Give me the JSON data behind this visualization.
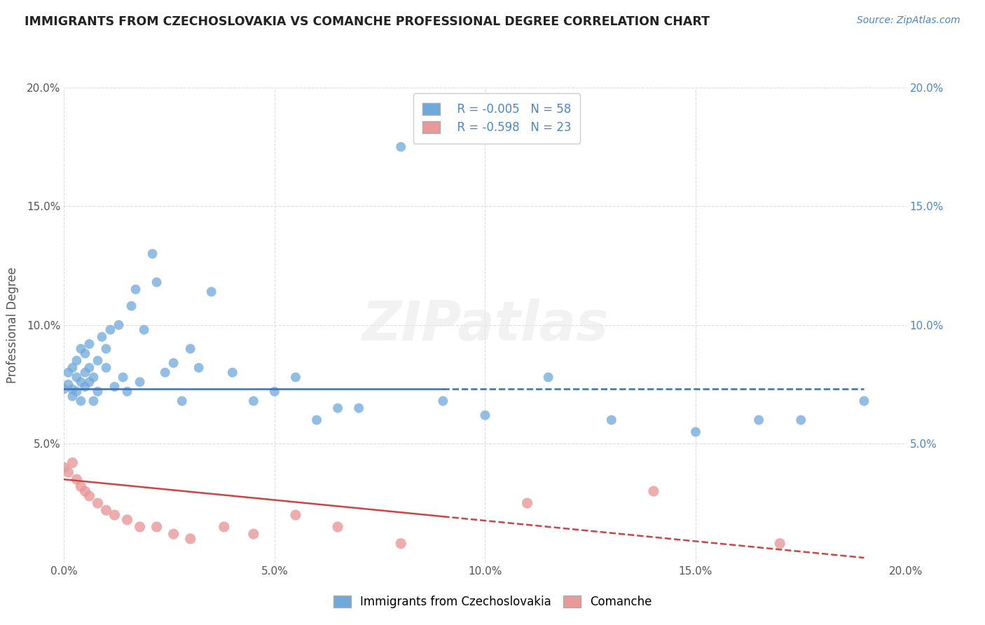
{
  "title": "IMMIGRANTS FROM CZECHOSLOVAKIA VS COMANCHE PROFESSIONAL DEGREE CORRELATION CHART",
  "source_text": "Source: ZipAtlas.com",
  "ylabel": "Professional Degree",
  "watermark": "ZIPatlas",
  "xlim": [
    0.0,
    0.2
  ],
  "ylim": [
    0.0,
    0.2
  ],
  "xtick_labels": [
    "0.0%",
    "5.0%",
    "10.0%",
    "15.0%",
    "20.0%"
  ],
  "xtick_vals": [
    0.0,
    0.05,
    0.1,
    0.15,
    0.2
  ],
  "ytick_labels": [
    "",
    "5.0%",
    "10.0%",
    "15.0%",
    "20.0%"
  ],
  "ytick_vals": [
    0.0,
    0.05,
    0.1,
    0.15,
    0.2
  ],
  "right_ytick_labels": [
    "5.0%",
    "10.0%",
    "15.0%",
    "20.0%"
  ],
  "right_ytick_vals": [
    0.05,
    0.1,
    0.15,
    0.2
  ],
  "legend_r1": "R = -0.005",
  "legend_n1": "N = 58",
  "legend_r2": "R = -0.598",
  "legend_n2": "N = 23",
  "blue_color": "#6fa8dc",
  "pink_color": "#ea9999",
  "blue_dark": "#3d6eb5",
  "pink_dark": "#cc4444",
  "blue_scatter_x": [
    0.0,
    0.001,
    0.001,
    0.002,
    0.002,
    0.002,
    0.003,
    0.003,
    0.003,
    0.004,
    0.004,
    0.004,
    0.005,
    0.005,
    0.005,
    0.006,
    0.006,
    0.006,
    0.007,
    0.007,
    0.008,
    0.008,
    0.009,
    0.01,
    0.01,
    0.011,
    0.012,
    0.013,
    0.014,
    0.015,
    0.016,
    0.017,
    0.018,
    0.019,
    0.021,
    0.022,
    0.024,
    0.026,
    0.028,
    0.03,
    0.032,
    0.035,
    0.04,
    0.045,
    0.05,
    0.055,
    0.06,
    0.065,
    0.07,
    0.08,
    0.09,
    0.1,
    0.115,
    0.13,
    0.15,
    0.165,
    0.175,
    0.19
  ],
  "blue_scatter_y": [
    0.073,
    0.075,
    0.08,
    0.073,
    0.082,
    0.07,
    0.078,
    0.085,
    0.072,
    0.09,
    0.068,
    0.076,
    0.08,
    0.074,
    0.088,
    0.082,
    0.076,
    0.092,
    0.078,
    0.068,
    0.085,
    0.072,
    0.095,
    0.09,
    0.082,
    0.098,
    0.074,
    0.1,
    0.078,
    0.072,
    0.108,
    0.115,
    0.076,
    0.098,
    0.13,
    0.118,
    0.08,
    0.084,
    0.068,
    0.09,
    0.082,
    0.114,
    0.08,
    0.068,
    0.072,
    0.078,
    0.06,
    0.065,
    0.065,
    0.175,
    0.068,
    0.062,
    0.078,
    0.06,
    0.055,
    0.06,
    0.06,
    0.068
  ],
  "pink_scatter_x": [
    0.0,
    0.001,
    0.002,
    0.003,
    0.004,
    0.005,
    0.006,
    0.008,
    0.01,
    0.012,
    0.015,
    0.018,
    0.022,
    0.026,
    0.03,
    0.038,
    0.045,
    0.055,
    0.065,
    0.08,
    0.11,
    0.14,
    0.17
  ],
  "pink_scatter_y": [
    0.04,
    0.038,
    0.042,
    0.035,
    0.032,
    0.03,
    0.028,
    0.025,
    0.022,
    0.02,
    0.018,
    0.015,
    0.015,
    0.012,
    0.01,
    0.015,
    0.012,
    0.02,
    0.015,
    0.008,
    0.025,
    0.03,
    0.008
  ],
  "blue_line_x": [
    0.0,
    0.09,
    0.19
  ],
  "blue_line_y": [
    0.073,
    0.073,
    0.073
  ],
  "blue_line_solid_end": 0.09,
  "pink_line_x": [
    0.0,
    0.19
  ],
  "pink_line_y": [
    0.035,
    0.002
  ],
  "pink_line_solid_end": 0.09,
  "background_color": "#ffffff",
  "grid_color": "#dddddd"
}
